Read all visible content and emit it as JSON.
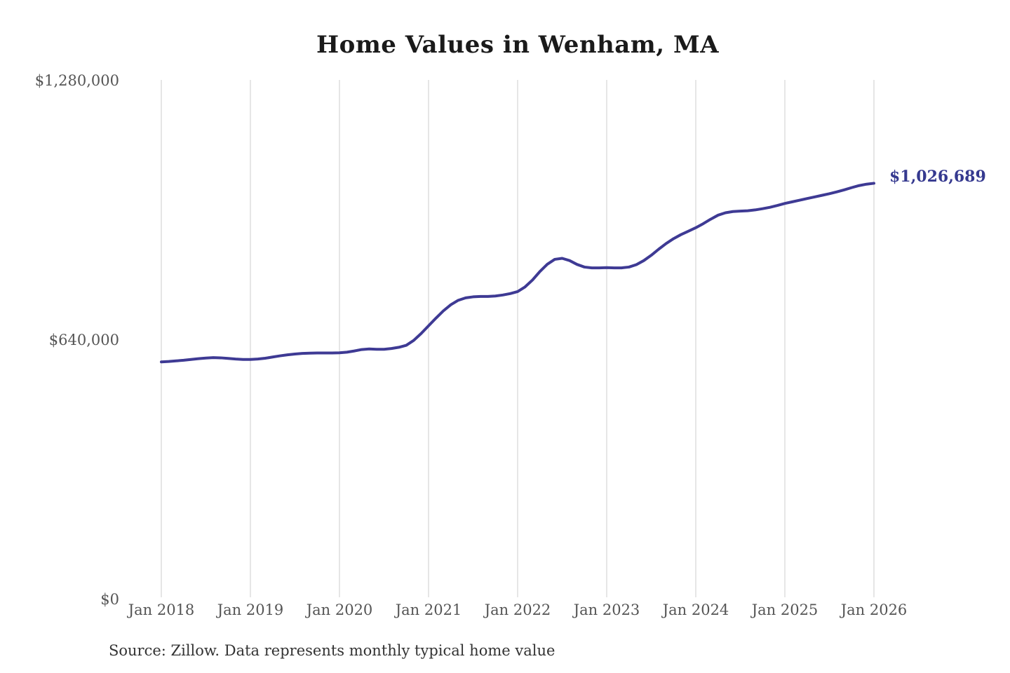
{
  "chart": {
    "title": "Home Values in Wenham, MA",
    "source": "Source: Zillow. Data represents monthly typical home value",
    "end_label": {
      "text": "$1,026,689"
    },
    "colors": {
      "line": "#3e3a94",
      "end_label": "#35398f",
      "grid": "#cccccc",
      "tick": "#555555",
      "title": "#1a1a1a",
      "source": "#333333",
      "background": "#ffffff"
    }
  },
  "chart_data": {
    "type": "line",
    "title": "Home Values in Wenham, MA",
    "xlabel": "",
    "ylabel": "",
    "frequency": "monthly",
    "x_start": "Jan 2018",
    "x_end": "Jan 2026",
    "x_tick_labels": [
      "Jan 2018",
      "Jan 2019",
      "Jan 2020",
      "Jan 2021",
      "Jan 2022",
      "Jan 2023",
      "Jan 2024",
      "Jan 2025",
      "Jan 2026"
    ],
    "y_ticks": [
      {
        "label": "$0",
        "value": 0
      },
      {
        "label": "$640,000",
        "value": 640000
      },
      {
        "label": "$1,280,000",
        "value": 1280000
      }
    ],
    "ylim": [
      0,
      1280000
    ],
    "grid": "vertical-only",
    "legend": "none",
    "annotations": [
      {
        "text": "$1,026,689",
        "position": "end-of-line",
        "value": 1026689
      }
    ],
    "series": [
      {
        "name": "Typical home value",
        "final_value": 1026689,
        "values": [
          586000,
          587000,
          588500,
          590000,
          592000,
          594000,
          595500,
          596500,
          596000,
          594500,
          593000,
          592000,
          592000,
          593000,
          595000,
          598000,
          601000,
          603500,
          605500,
          607000,
          607500,
          608000,
          608000,
          608000,
          608500,
          610000,
          613000,
          616500,
          618000,
          617000,
          617000,
          619000,
          622000,
          627000,
          639000,
          656000,
          675000,
          694000,
          712000,
          727000,
          738000,
          744000,
          746500,
          747500,
          747500,
          748500,
          751000,
          754500,
          759500,
          771000,
          788000,
          809000,
          827000,
          839000,
          841500,
          836000,
          826500,
          820000,
          818000,
          818000,
          818500,
          818000,
          818000,
          820000,
          826000,
          836000,
          849000,
          864000,
          878000,
          890000,
          900000,
          908500,
          917000,
          927000,
          938000,
          948000,
          954000,
          957000,
          958000,
          959000,
          961000,
          964000,
          967500,
          972000,
          977000,
          981000,
          985000,
          989000,
          993000,
          997000,
          1001000,
          1005500,
          1010500,
          1016000,
          1021000,
          1024500,
          1026689
        ]
      }
    ]
  }
}
